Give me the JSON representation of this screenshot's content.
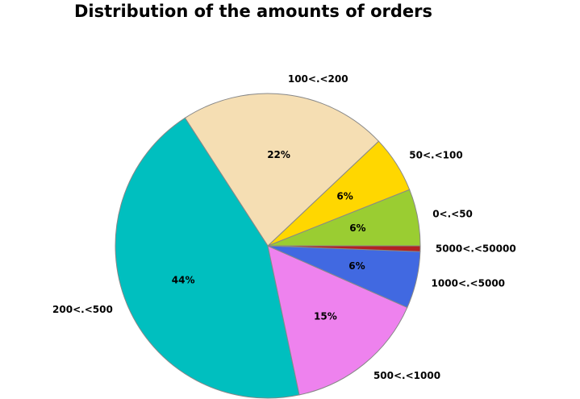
{
  "chart_data": {
    "type": "pie",
    "title": "Distribution of the amounts of orders",
    "start_angle_deg": 0,
    "direction": "counterclockwise",
    "slices": [
      {
        "label": "0<.<50",
        "value": 6,
        "percent_label": "6%",
        "color": "#9acd32"
      },
      {
        "label": "50<.<100",
        "value": 6,
        "percent_label": "6%",
        "color": "#ffd700"
      },
      {
        "label": "100<.<200",
        "value": 22,
        "percent_label": "22%",
        "color": "#f5deb3"
      },
      {
        "label": "200<.<500",
        "value": 44,
        "percent_label": "44%",
        "color": "#00bfbf"
      },
      {
        "label": "500<.<1000",
        "value": 15,
        "percent_label": "15%",
        "color": "#ee82ee"
      },
      {
        "label": "1000<.<5000",
        "value": 6,
        "percent_label": "6%",
        "color": "#4169e1"
      },
      {
        "label": "5000<.<50000",
        "value": 0.6,
        "percent_label": "",
        "color": "#b22222"
      }
    ],
    "edge_color": "#888888"
  }
}
